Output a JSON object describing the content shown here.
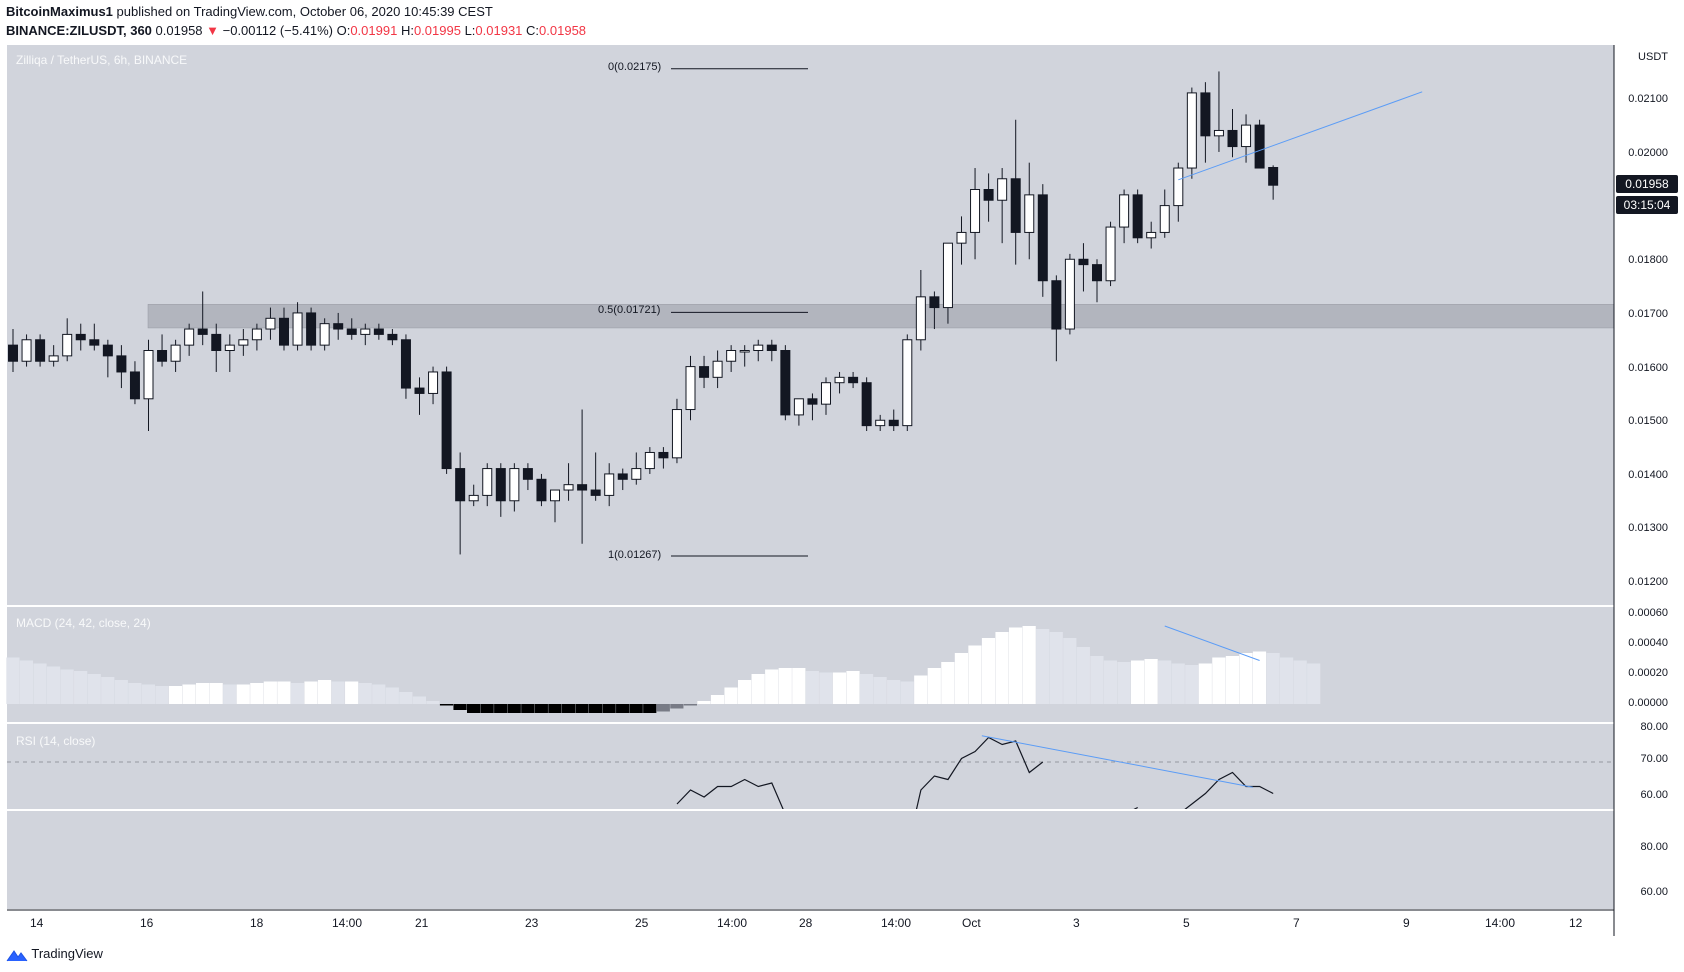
{
  "header": {
    "author": "BitcoinMaximus1",
    "published": " published on TradingView.com, October 06, 2020 10:45:39 CEST",
    "symbol": "BINANCE:ZILUSDT, 360",
    "last": " 0.01958 ",
    "change_arrow": "▼",
    "change": " −0.00112 (−5.41%) ",
    "o_label": "O:",
    "o": "0.01991",
    "h_label": " H:",
    "h": "0.01995",
    "l_label": " L:",
    "l": "0.01931",
    "c_label": " C:",
    "c": "0.01958"
  },
  "main_pane": {
    "title": "Zilliqa / TetherUS, 6h, BINANCE",
    "currency": "USDT",
    "price_tag": "0.01958",
    "countdown_tag": "03:15:04",
    "price_labels": [
      "0.02100",
      "0.02000",
      "0.01900",
      "0.01800",
      "0.01700",
      "0.01600",
      "0.01500",
      "0.01400",
      "0.01300",
      "0.01200"
    ],
    "fib_levels": [
      {
        "label": "0(0.02175)",
        "price": 0.02175
      },
      {
        "label": "0.5(0.01721)",
        "price": 0.01721
      },
      {
        "label": "1(0.01267)",
        "price": 0.01267
      }
    ]
  },
  "macd_pane": {
    "title": "MACD (24, 42, close, 24)",
    "labels": [
      "0.00060",
      "0.00040",
      "0.00020",
      "0.00000"
    ]
  },
  "rsi_pane": {
    "title": "RSI (14, close)",
    "labels_top": [
      "80.00",
      "70.00",
      "60.00"
    ],
    "labels_bottom": [
      "80.00",
      "60.00"
    ]
  },
  "x_axis": {
    "labels": [
      "14",
      "16",
      "18",
      "14:00",
      "21",
      "23",
      "25",
      "14:00",
      "28",
      "14:00",
      "Oct",
      "3",
      "5",
      "7",
      "9",
      "14:00",
      "12"
    ]
  },
  "footer": {
    "brand": "TradingView"
  },
  "colors": {
    "pane_bg": "#d1d4dc",
    "candle_up": "#ffffff",
    "candle_down": "#131722",
    "trendline": "#5b9cf6",
    "zone": "#b2b5be",
    "change_red": "#f23645"
  },
  "chart_data": [
    {
      "type": "candlestick",
      "title": "Zilliqa / TetherUS, 6h, BINANCE",
      "ylabel": "USDT",
      "ylim": [
        0.0119,
        0.0227
      ],
      "interval": "6h",
      "support_zone": [
        0.01692,
        0.01736
      ],
      "trendline": {
        "from": [
          86,
          0.01968
        ],
        "to": [
          104,
          0.02132
        ]
      },
      "candles": [
        [
          0.0166,
          0.0169,
          0.0161,
          0.0163
        ],
        [
          0.0163,
          0.0168,
          0.0162,
          0.0167
        ],
        [
          0.0167,
          0.0168,
          0.0162,
          0.0163
        ],
        [
          0.0163,
          0.0166,
          0.0162,
          0.0164
        ],
        [
          0.0164,
          0.0171,
          0.0163,
          0.0168
        ],
        [
          0.0168,
          0.017,
          0.0165,
          0.0167
        ],
        [
          0.0167,
          0.017,
          0.0165,
          0.0166
        ],
        [
          0.0166,
          0.0167,
          0.016,
          0.0164
        ],
        [
          0.0164,
          0.0166,
          0.0158,
          0.0161
        ],
        [
          0.0161,
          0.0163,
          0.0155,
          0.0156
        ],
        [
          0.0156,
          0.0167,
          0.015,
          0.0165
        ],
        [
          0.0165,
          0.0168,
          0.0162,
          0.0163
        ],
        [
          0.0163,
          0.0167,
          0.0161,
          0.0166
        ],
        [
          0.0166,
          0.017,
          0.0164,
          0.0169
        ],
        [
          0.0169,
          0.0176,
          0.0166,
          0.0168
        ],
        [
          0.0168,
          0.017,
          0.0161,
          0.0165
        ],
        [
          0.0165,
          0.0168,
          0.0161,
          0.0166
        ],
        [
          0.0166,
          0.0169,
          0.0164,
          0.0167
        ],
        [
          0.0167,
          0.017,
          0.0165,
          0.0169
        ],
        [
          0.0169,
          0.0173,
          0.0167,
          0.0171
        ],
        [
          0.0171,
          0.0173,
          0.0165,
          0.0166
        ],
        [
          0.0166,
          0.0174,
          0.0165,
          0.0172
        ],
        [
          0.0172,
          0.0173,
          0.0165,
          0.0166
        ],
        [
          0.0166,
          0.0171,
          0.0165,
          0.017
        ],
        [
          0.017,
          0.0172,
          0.0167,
          0.0169
        ],
        [
          0.0169,
          0.0171,
          0.0167,
          0.0168
        ],
        [
          0.0168,
          0.017,
          0.0166,
          0.0169
        ],
        [
          0.0169,
          0.017,
          0.0167,
          0.0168
        ],
        [
          0.0168,
          0.0169,
          0.0166,
          0.0167
        ],
        [
          0.0167,
          0.0168,
          0.0156,
          0.0158
        ],
        [
          0.0158,
          0.016,
          0.0153,
          0.0157
        ],
        [
          0.0157,
          0.0162,
          0.0155,
          0.0161
        ],
        [
          0.0161,
          0.0162,
          0.0142,
          0.0143
        ],
        [
          0.0143,
          0.0146,
          0.0127,
          0.0137
        ],
        [
          0.0137,
          0.014,
          0.0136,
          0.0138
        ],
        [
          0.0138,
          0.0144,
          0.0136,
          0.0143
        ],
        [
          0.0143,
          0.0144,
          0.0134,
          0.0137
        ],
        [
          0.0137,
          0.0144,
          0.0135,
          0.0143
        ],
        [
          0.0143,
          0.0144,
          0.0139,
          0.0141
        ],
        [
          0.0141,
          0.0142,
          0.0136,
          0.0137
        ],
        [
          0.0137,
          0.0139,
          0.0133,
          0.0139
        ],
        [
          0.0139,
          0.0144,
          0.0137,
          0.014
        ],
        [
          0.014,
          0.0154,
          0.0129,
          0.0139
        ],
        [
          0.0139,
          0.0146,
          0.0137,
          0.0138
        ],
        [
          0.0138,
          0.0144,
          0.0136,
          0.0142
        ],
        [
          0.0142,
          0.0143,
          0.0139,
          0.0141
        ],
        [
          0.0141,
          0.0146,
          0.014,
          0.0143
        ],
        [
          0.0143,
          0.0147,
          0.0142,
          0.0146
        ],
        [
          0.0146,
          0.0147,
          0.0143,
          0.0145
        ],
        [
          0.0145,
          0.0156,
          0.0144,
          0.0154
        ],
        [
          0.0154,
          0.0164,
          0.0152,
          0.0162
        ],
        [
          0.0162,
          0.0164,
          0.0158,
          0.016
        ],
        [
          0.016,
          0.0165,
          0.0158,
          0.0163
        ],
        [
          0.0163,
          0.0166,
          0.0161,
          0.0165
        ],
        [
          0.0165,
          0.0166,
          0.0162,
          0.0165
        ],
        [
          0.0165,
          0.0167,
          0.0163,
          0.0166
        ],
        [
          0.0166,
          0.0167,
          0.0163,
          0.0165
        ],
        [
          0.0165,
          0.0166,
          0.0152,
          0.0153
        ],
        [
          0.0153,
          0.0156,
          0.0151,
          0.0156
        ],
        [
          0.0156,
          0.0157,
          0.0152,
          0.0155
        ],
        [
          0.0155,
          0.016,
          0.0153,
          0.0159
        ],
        [
          0.0159,
          0.0161,
          0.0157,
          0.016
        ],
        [
          0.016,
          0.0161,
          0.0158,
          0.0159
        ],
        [
          0.0159,
          0.016,
          0.015,
          0.0151
        ],
        [
          0.0151,
          0.0153,
          0.015,
          0.0152
        ],
        [
          0.0152,
          0.0154,
          0.015,
          0.0151
        ],
        [
          0.0151,
          0.0168,
          0.015,
          0.0167
        ],
        [
          0.0167,
          0.018,
          0.0165,
          0.0175
        ],
        [
          0.0175,
          0.0176,
          0.0169,
          0.0173
        ],
        [
          0.0173,
          0.0185,
          0.017,
          0.0185
        ],
        [
          0.0185,
          0.019,
          0.0181,
          0.0187
        ],
        [
          0.0187,
          0.0199,
          0.0182,
          0.0195
        ],
        [
          0.0195,
          0.0198,
          0.0189,
          0.0193
        ],
        [
          0.0193,
          0.0199,
          0.0185,
          0.0197
        ],
        [
          0.0197,
          0.0208,
          0.0181,
          0.0187
        ],
        [
          0.0187,
          0.02,
          0.0182,
          0.0194
        ],
        [
          0.0194,
          0.0196,
          0.0175,
          0.0178
        ],
        [
          0.0178,
          0.0179,
          0.0163,
          0.0169
        ],
        [
          0.0169,
          0.0183,
          0.0168,
          0.0182
        ],
        [
          0.0182,
          0.0185,
          0.0176,
          0.0181
        ],
        [
          0.0181,
          0.0182,
          0.0174,
          0.0178
        ],
        [
          0.0178,
          0.0189,
          0.0177,
          0.0188
        ],
        [
          0.0188,
          0.0195,
          0.0185,
          0.0194
        ],
        [
          0.0194,
          0.0195,
          0.0185,
          0.0186
        ],
        [
          0.0186,
          0.0189,
          0.0184,
          0.0187
        ],
        [
          0.0187,
          0.0195,
          0.0186,
          0.0192
        ],
        [
          0.0192,
          0.02,
          0.0189,
          0.0199
        ],
        [
          0.0199,
          0.0214,
          0.0197,
          0.0213
        ],
        [
          0.0213,
          0.0215,
          0.02,
          0.0205
        ],
        [
          0.0205,
          0.0217,
          0.0202,
          0.0206
        ],
        [
          0.0206,
          0.021,
          0.0201,
          0.0203
        ],
        [
          0.0203,
          0.0209,
          0.02,
          0.0207
        ],
        [
          0.0207,
          0.0208,
          0.0199,
          0.0199
        ],
        [
          0.01991,
          0.01995,
          0.01931,
          0.01958
        ]
      ]
    },
    {
      "type": "bar",
      "title": "MACD (24, 42, close, 24)",
      "ylim": [
        -4e-05,
        0.00062
      ],
      "values": [
        0.00031,
        0.00029,
        0.00027,
        0.00025,
        0.00023,
        0.00022,
        0.0002,
        0.00018,
        0.00016,
        0.00014,
        0.00013,
        0.00012,
        0.00012,
        0.00013,
        0.00014,
        0.00014,
        0.00013,
        0.00013,
        0.00014,
        0.00015,
        0.00015,
        0.00014,
        0.00015,
        0.00016,
        0.00015,
        0.00015,
        0.00014,
        0.00013,
        0.00011,
        8e-05,
        5e-05,
        2e-05,
        -1e-05,
        -4e-05,
        -6e-05,
        -6e-05,
        -6e-05,
        -6e-05,
        -6e-05,
        -6e-05,
        -6e-05,
        -6e-05,
        -6e-05,
        -6e-05,
        -6e-05,
        -6e-05,
        -6e-05,
        -6e-05,
        -5e-05,
        -3e-05,
        -1e-05,
        2e-05,
        6e-05,
        0.00011,
        0.00016,
        0.0002,
        0.00023,
        0.00024,
        0.00024,
        0.00022,
        0.00021,
        0.00021,
        0.00022,
        0.0002,
        0.00018,
        0.00016,
        0.00015,
        0.00019,
        0.00024,
        0.00028,
        0.00034,
        0.00039,
        0.00044,
        0.00048,
        0.00051,
        0.00052,
        0.0005,
        0.00048,
        0.00044,
        0.00038,
        0.00032,
        0.00029,
        0.00028,
        0.00029,
        0.0003,
        0.00029,
        0.00027,
        0.00026,
        0.00027,
        0.00031,
        0.00032,
        0.00034,
        0.00035,
        0.00034,
        0.00031,
        0.00029,
        0.00027
      ]
    },
    {
      "type": "line",
      "title": "RSI (14, close)",
      "ylim": [
        55,
        82
      ],
      "guide": 70,
      "x": [
        49,
        50,
        51,
        52,
        53,
        54,
        55,
        56,
        57,
        58,
        66,
        67,
        68,
        69,
        70,
        71,
        72,
        73,
        74,
        75,
        76,
        81,
        82,
        83,
        84,
        85,
        86,
        87,
        88,
        89,
        90,
        91,
        92,
        93
      ],
      "values": [
        58,
        62,
        60,
        63,
        63,
        65,
        63,
        64,
        55,
        45,
        45,
        62,
        66,
        65,
        71,
        73,
        77,
        75,
        76,
        67,
        70,
        50,
        55,
        57,
        56,
        54,
        55,
        58,
        61,
        65,
        67,
        63,
        63,
        61
      ],
      "trendline": {
        "from": [
          71.5,
          77.5
        ],
        "to": [
          91.5,
          62.8
        ]
      }
    }
  ]
}
